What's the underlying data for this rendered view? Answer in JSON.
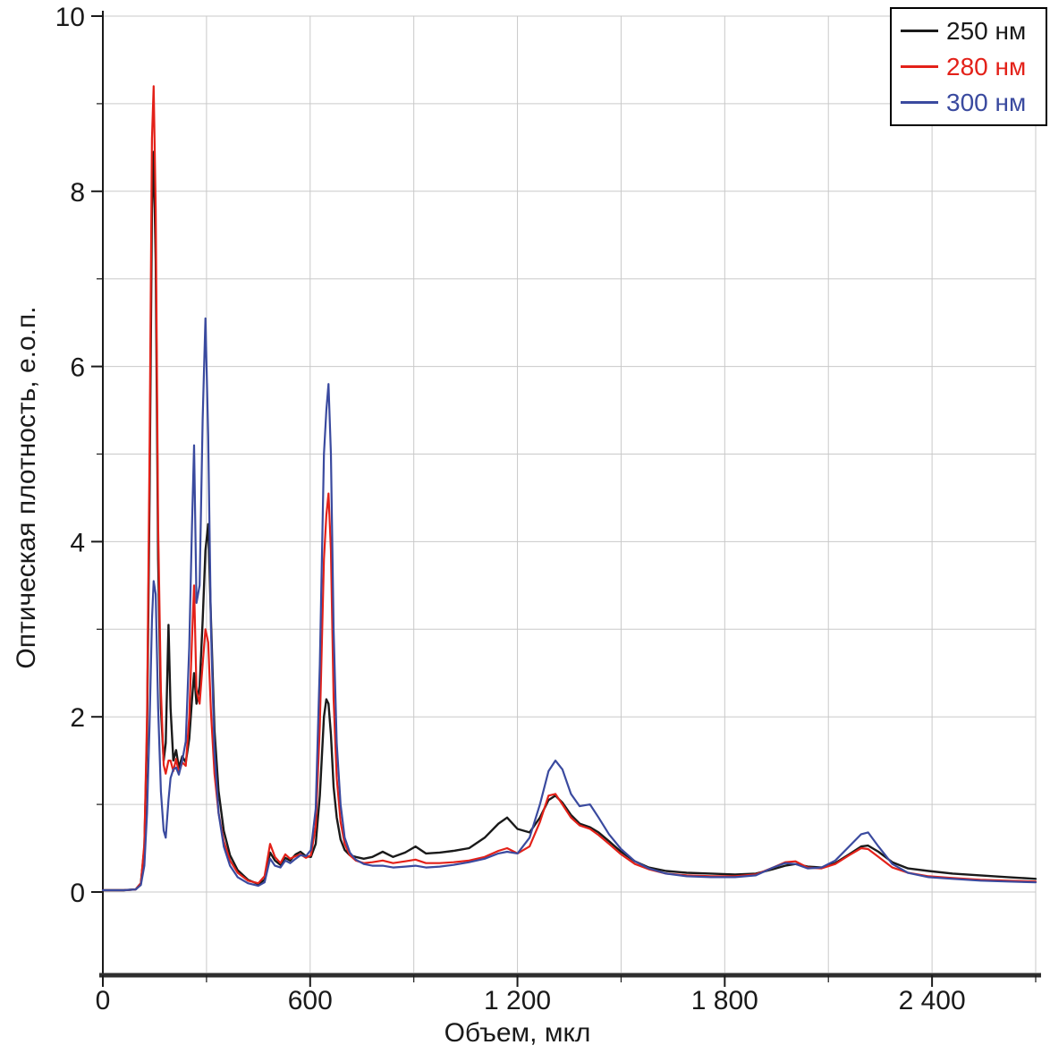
{
  "chart_data": {
    "type": "line",
    "title": "",
    "xlabel": "Объем, мкл",
    "ylabel": "Оптическая плотность, е.о.п.",
    "xlim": [
      0,
      2700
    ],
    "ylim": [
      -0.95,
      10
    ],
    "legend_position": "top-right",
    "grid": {
      "x_step": 300,
      "y_step": 1,
      "color": "#c9c9c9",
      "on": true
    },
    "axis_color": "#1a1a1a",
    "x_tick_labels": [
      {
        "v": 0,
        "t": "0"
      },
      {
        "v": 600,
        "t": "600"
      },
      {
        "v": 1200,
        "t": "1 200"
      },
      {
        "v": 1800,
        "t": "1 800"
      },
      {
        "v": 2400,
        "t": "2 400"
      }
    ],
    "y_tick_labels": [
      {
        "v": 0,
        "t": "0"
      },
      {
        "v": 2,
        "t": "2"
      },
      {
        "v": 4,
        "t": "4"
      },
      {
        "v": 6,
        "t": "6"
      },
      {
        "v": 8,
        "t": "8"
      },
      {
        "v": 10,
        "t": "10"
      }
    ],
    "x_minor_step": 300,
    "y_minor_step": 1,
    "x": [
      0,
      60,
      95,
      110,
      120,
      128,
      135,
      142,
      147,
      153,
      160,
      168,
      176,
      182,
      190,
      196,
      204,
      212,
      220,
      230,
      240,
      250,
      258,
      264,
      271,
      280,
      289,
      297,
      305,
      313,
      323,
      335,
      350,
      368,
      390,
      420,
      450,
      468,
      484,
      498,
      514,
      528,
      542,
      558,
      572,
      588,
      602,
      616,
      628,
      640,
      647,
      653,
      660,
      668,
      677,
      688,
      700,
      715,
      732,
      755,
      780,
      810,
      840,
      875,
      905,
      935,
      975,
      1015,
      1060,
      1105,
      1145,
      1170,
      1200,
      1235,
      1265,
      1290,
      1310,
      1330,
      1355,
      1380,
      1410,
      1435,
      1465,
      1500,
      1540,
      1580,
      1630,
      1690,
      1760,
      1830,
      1890,
      1940,
      1975,
      2005,
      2040,
      2080,
      2120,
      2160,
      2195,
      2215,
      2245,
      2285,
      2330,
      2390,
      2460,
      2540,
      2620,
      2700
    ],
    "series": [
      {
        "name": "250 нм",
        "color": "#1a1a1a",
        "width": 2.4,
        "values": [
          0.02,
          0.02,
          0.03,
          0.1,
          0.5,
          1.8,
          4.5,
          7.8,
          8.45,
          7.2,
          3.8,
          2.1,
          1.5,
          1.7,
          3.05,
          2.1,
          1.5,
          1.62,
          1.42,
          1.55,
          1.48,
          1.75,
          2.2,
          2.5,
          2.15,
          2.35,
          3.1,
          3.9,
          4.2,
          3.1,
          1.85,
          1.15,
          0.7,
          0.42,
          0.25,
          0.14,
          0.09,
          0.14,
          0.45,
          0.36,
          0.31,
          0.39,
          0.36,
          0.43,
          0.46,
          0.41,
          0.4,
          0.55,
          1.1,
          2.0,
          2.2,
          2.15,
          1.8,
          1.2,
          0.85,
          0.6,
          0.48,
          0.42,
          0.4,
          0.38,
          0.4,
          0.46,
          0.4,
          0.45,
          0.52,
          0.44,
          0.45,
          0.47,
          0.5,
          0.62,
          0.78,
          0.85,
          0.72,
          0.68,
          0.85,
          1.05,
          1.1,
          1.02,
          0.88,
          0.78,
          0.74,
          0.68,
          0.58,
          0.46,
          0.35,
          0.28,
          0.24,
          0.22,
          0.21,
          0.2,
          0.21,
          0.26,
          0.3,
          0.32,
          0.29,
          0.28,
          0.33,
          0.43,
          0.52,
          0.53,
          0.46,
          0.34,
          0.27,
          0.24,
          0.21,
          0.19,
          0.17,
          0.15
        ]
      },
      {
        "name": "280 нм",
        "color": "#e32119",
        "width": 2.2,
        "values": [
          0.02,
          0.02,
          0.03,
          0.1,
          0.55,
          2.0,
          5.0,
          8.6,
          9.2,
          7.8,
          4.2,
          2.3,
          1.45,
          1.35,
          1.5,
          1.5,
          1.38,
          1.52,
          1.36,
          1.48,
          1.44,
          2.0,
          2.9,
          3.5,
          2.3,
          2.15,
          2.6,
          3.0,
          2.85,
          2.05,
          1.35,
          0.9,
          0.58,
          0.36,
          0.22,
          0.13,
          0.1,
          0.18,
          0.55,
          0.4,
          0.33,
          0.43,
          0.38,
          0.41,
          0.43,
          0.39,
          0.42,
          0.75,
          1.9,
          3.8,
          4.3,
          4.55,
          3.9,
          2.2,
          1.3,
          0.8,
          0.55,
          0.42,
          0.36,
          0.33,
          0.34,
          0.36,
          0.33,
          0.35,
          0.37,
          0.33,
          0.33,
          0.34,
          0.36,
          0.4,
          0.47,
          0.5,
          0.44,
          0.52,
          0.8,
          1.1,
          1.12,
          1.0,
          0.85,
          0.76,
          0.72,
          0.65,
          0.55,
          0.43,
          0.32,
          0.26,
          0.21,
          0.19,
          0.18,
          0.18,
          0.2,
          0.28,
          0.34,
          0.35,
          0.28,
          0.27,
          0.32,
          0.42,
          0.5,
          0.49,
          0.4,
          0.28,
          0.22,
          0.18,
          0.16,
          0.14,
          0.13,
          0.12
        ]
      },
      {
        "name": "300 нм",
        "color": "#3a4a9f",
        "width": 2.2,
        "values": [
          0.02,
          0.02,
          0.03,
          0.08,
          0.3,
          0.9,
          1.9,
          3.1,
          3.55,
          3.4,
          2.1,
          1.15,
          0.7,
          0.62,
          1.05,
          1.3,
          1.4,
          1.42,
          1.34,
          1.5,
          1.72,
          2.8,
          4.2,
          5.1,
          3.3,
          3.5,
          5.4,
          6.55,
          5.2,
          3.0,
          1.6,
          0.9,
          0.52,
          0.3,
          0.17,
          0.1,
          0.07,
          0.11,
          0.38,
          0.3,
          0.28,
          0.36,
          0.33,
          0.38,
          0.42,
          0.41,
          0.48,
          0.95,
          2.6,
          5.0,
          5.5,
          5.8,
          5.0,
          3.0,
          1.7,
          1.0,
          0.62,
          0.45,
          0.37,
          0.32,
          0.3,
          0.3,
          0.28,
          0.29,
          0.3,
          0.28,
          0.29,
          0.31,
          0.34,
          0.38,
          0.44,
          0.46,
          0.44,
          0.62,
          1.0,
          1.38,
          1.5,
          1.4,
          1.12,
          0.98,
          1.0,
          0.85,
          0.66,
          0.49,
          0.35,
          0.27,
          0.21,
          0.18,
          0.17,
          0.17,
          0.19,
          0.28,
          0.33,
          0.32,
          0.27,
          0.28,
          0.36,
          0.52,
          0.66,
          0.68,
          0.52,
          0.32,
          0.22,
          0.17,
          0.15,
          0.13,
          0.12,
          0.11
        ]
      }
    ]
  }
}
